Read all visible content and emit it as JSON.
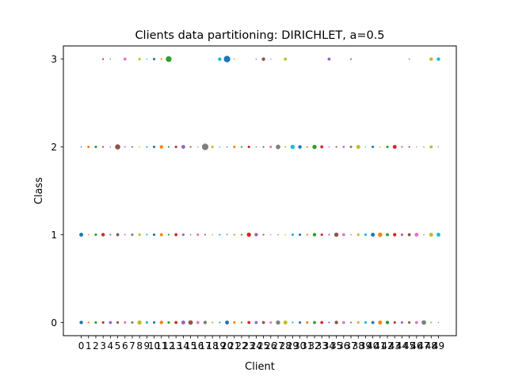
{
  "chart_data": {
    "type": "scatter",
    "title": "Clients data partitioning: DIRICHLET, a=0.5",
    "xlabel": "Client",
    "ylabel": "Class",
    "x_ticks": [
      0,
      1,
      2,
      3,
      4,
      5,
      6,
      7,
      8,
      9,
      10,
      11,
      12,
      13,
      14,
      15,
      16,
      17,
      18,
      19,
      20,
      21,
      22,
      23,
      24,
      25,
      26,
      27,
      28,
      29,
      30,
      31,
      32,
      33,
      34,
      35,
      36,
      37,
      38,
      39,
      40,
      41,
      42,
      43,
      44,
      45,
      46,
      47,
      48,
      49
    ],
    "y_ticks": [
      0,
      1,
      2,
      3
    ],
    "xlim": [
      -2.45,
      51.45
    ],
    "ylim": [
      -0.15,
      3.15
    ],
    "grid": false,
    "legend": "none",
    "encoding": "marker color by client (tab10 cycle); marker area proportional to sample count",
    "palette": [
      "#1f77b4",
      "#ff7f0e",
      "#2ca02c",
      "#d62728",
      "#9467bd",
      "#8c564b",
      "#e377c2",
      "#7f7f7f",
      "#bcbd22",
      "#17becf"
    ],
    "sizes": {
      "class_0": [
        4,
        1,
        2,
        2,
        3,
        2,
        2,
        2,
        6,
        2,
        2,
        4,
        2,
        3,
        5,
        7,
        3,
        4,
        1,
        1,
        5,
        2,
        1,
        3,
        3,
        3,
        2,
        6,
        5,
        1,
        2,
        2,
        3,
        3,
        1,
        4,
        3,
        1,
        2,
        2,
        3,
        5,
        4,
        2,
        2,
        2,
        3,
        7,
        1,
        0.5
      ],
      "class_1": [
        5,
        0.5,
        2,
        4,
        1,
        3,
        1,
        2,
        2,
        1,
        2,
        3,
        1,
        3,
        2,
        0.5,
        2,
        1,
        0.5,
        1,
        0.5,
        1,
        1,
        6,
        4,
        1,
        0.5,
        0.5,
        0.5,
        2,
        2,
        1,
        4,
        2,
        1,
        6,
        3,
        0.5,
        2,
        2,
        5,
        6,
        3,
        4,
        2,
        3,
        5,
        0.5,
        5,
        5
      ],
      "class_2": [
        0.5,
        2,
        2,
        1,
        0.5,
        9,
        1,
        1,
        0.5,
        1,
        2,
        4,
        1,
        2,
        5,
        1,
        0.5,
        14,
        2,
        0.5,
        0.5,
        2,
        1,
        2,
        0.5,
        1,
        2,
        7,
        1,
        6,
        4,
        1,
        6,
        3,
        0.5,
        1,
        2,
        2,
        5,
        0.5,
        2,
        0.5,
        2,
        5,
        1,
        1,
        0.5,
        0.5,
        3,
        0.5
      ],
      "class_3": [
        0,
        0,
        0,
        1,
        0.5,
        0,
        3,
        0,
        2,
        0.5,
        2,
        1,
        11,
        0,
        0,
        0,
        0,
        0,
        0,
        4,
        14,
        0.5,
        0,
        0,
        0.5,
        4,
        0.5,
        0,
        3,
        0,
        0,
        0,
        0,
        0,
        3,
        0,
        0,
        1,
        0,
        0,
        0,
        0,
        0,
        0,
        0,
        0.5,
        0,
        0,
        4,
        4
      ]
    }
  }
}
